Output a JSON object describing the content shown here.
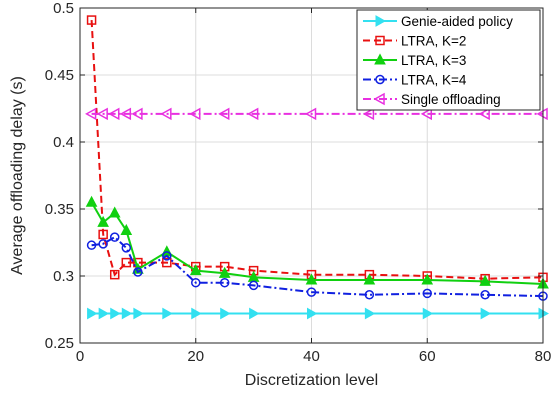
{
  "chart_data": {
    "type": "line",
    "xlabel": "Discretization level",
    "ylabel": "Average offloading delay (s)",
    "xlim": [
      0,
      80
    ],
    "ylim": [
      0.25,
      0.5
    ],
    "xticks": [
      0,
      20,
      40,
      60,
      80
    ],
    "xtick_labels": [
      "0",
      "20",
      "40",
      "60",
      "80"
    ],
    "yticks": [
      0.25,
      0.3,
      0.35,
      0.4,
      0.45,
      0.5
    ],
    "ytick_labels": [
      "0.25",
      "0.3",
      "0.35",
      "0.4",
      "0.45",
      "0.5"
    ],
    "grid": true,
    "legend_position": "top-right",
    "series": [
      {
        "name": "Genie-aided policy",
        "color": "#33e0f0",
        "dash": "solid",
        "marker": "triangle-right",
        "x": [
          2,
          4,
          6,
          8,
          10,
          15,
          20,
          25,
          30,
          40,
          50,
          60,
          70,
          80
        ],
        "y": [
          0.272,
          0.272,
          0.272,
          0.272,
          0.272,
          0.272,
          0.272,
          0.272,
          0.272,
          0.272,
          0.272,
          0.272,
          0.272,
          0.272
        ]
      },
      {
        "name": "LTRA, K=2",
        "color": "#e81010",
        "dash": "dashed",
        "marker": "square",
        "x": [
          2,
          4,
          6,
          8,
          10,
          15,
          20,
          25,
          30,
          40,
          50,
          60,
          70,
          80
        ],
        "y": [
          0.491,
          0.331,
          0.301,
          0.31,
          0.31,
          0.31,
          0.307,
          0.307,
          0.304,
          0.301,
          0.301,
          0.3,
          0.298,
          0.299
        ]
      },
      {
        "name": "LTRA, K=3",
        "color": "#10d010",
        "dash": "solid",
        "marker": "triangle-up",
        "x": [
          2,
          4,
          6,
          8,
          10,
          15,
          20,
          25,
          30,
          40,
          50,
          60,
          70,
          80
        ],
        "y": [
          0.355,
          0.34,
          0.347,
          0.334,
          0.305,
          0.318,
          0.304,
          0.302,
          0.299,
          0.297,
          0.297,
          0.297,
          0.296,
          0.294
        ]
      },
      {
        "name": "LTRA, K=4",
        "color": "#1020e0",
        "dash": "dashdot",
        "marker": "circle",
        "x": [
          2,
          4,
          6,
          8,
          10,
          15,
          20,
          25,
          30,
          40,
          50,
          60,
          70,
          80
        ],
        "y": [
          0.323,
          0.324,
          0.329,
          0.321,
          0.303,
          0.315,
          0.295,
          0.295,
          0.293,
          0.288,
          0.286,
          0.287,
          0.286,
          0.285
        ]
      },
      {
        "name": "Single offloading",
        "color": "#e830e0",
        "dash": "dashdot",
        "marker": "triangle-left",
        "x": [
          2,
          4,
          6,
          8,
          10,
          15,
          20,
          25,
          30,
          40,
          50,
          60,
          70,
          80
        ],
        "y": [
          0.421,
          0.421,
          0.421,
          0.421,
          0.421,
          0.421,
          0.421,
          0.421,
          0.421,
          0.421,
          0.421,
          0.421,
          0.421,
          0.421
        ]
      }
    ]
  }
}
